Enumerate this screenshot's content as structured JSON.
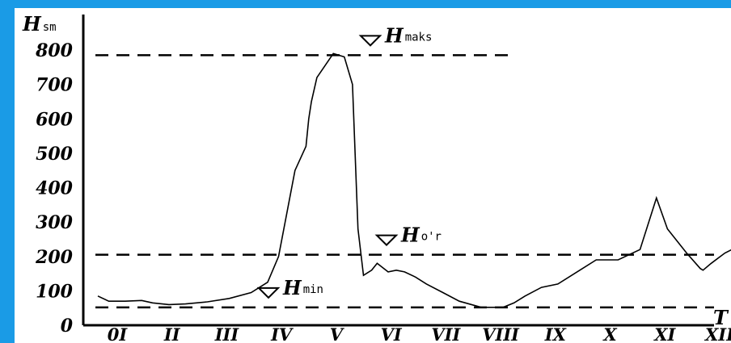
{
  "chart_data": {
    "type": "line",
    "title": "",
    "ylabel": "H",
    "ylabel_sub": "sm",
    "xlabel": "T",
    "ylim": [
      0,
      800
    ],
    "y_ticks": [
      "0",
      "100",
      "200",
      "300",
      "400",
      "500",
      "600",
      "700",
      "800"
    ],
    "categories": [
      "0I",
      "II",
      "III",
      "IV",
      "V",
      "VI",
      "VII",
      "VIII",
      "IX",
      "X",
      "XI",
      "XII"
    ],
    "grid": false,
    "series": [
      {
        "color": "#000000",
        "x": [
          0.0,
          0.2,
          0.5,
          0.8,
          1.0,
          1.3,
          1.6,
          2.0,
          2.4,
          2.8,
          3.1,
          3.3,
          3.6,
          3.8,
          3.85,
          3.9,
          4.0,
          4.3,
          4.5,
          4.65,
          4.75,
          4.85,
          5.0,
          5.1,
          5.3,
          5.45,
          5.6,
          5.8,
          6.0,
          6.3,
          6.6,
          7.0,
          7.4,
          7.6,
          7.8,
          8.1,
          8.4,
          8.8,
          9.1,
          9.5,
          9.9,
          10.2,
          10.4,
          10.75,
          11.0,
          11.05,
          11.2,
          11.45,
          11.6,
          11.75,
          11.9
        ],
        "y": [
          85,
          70,
          70,
          72,
          65,
          60,
          62,
          68,
          78,
          95,
          125,
          200,
          450,
          520,
          600,
          650,
          720,
          790,
          780,
          700,
          280,
          145,
          160,
          180,
          155,
          160,
          155,
          140,
          120,
          95,
          70,
          52,
          52,
          65,
          85,
          110,
          120,
          160,
          190,
          190,
          220,
          370,
          280,
          210,
          165,
          160,
          180,
          210,
          222,
          190,
          190
        ]
      }
    ],
    "reference_lines": [
      {
        "name": "H",
        "sub": "maks",
        "y": 785
      },
      {
        "name": "H",
        "sub": "o'r",
        "y": 205
      },
      {
        "name": "H",
        "sub": "min",
        "y": 52
      }
    ]
  }
}
